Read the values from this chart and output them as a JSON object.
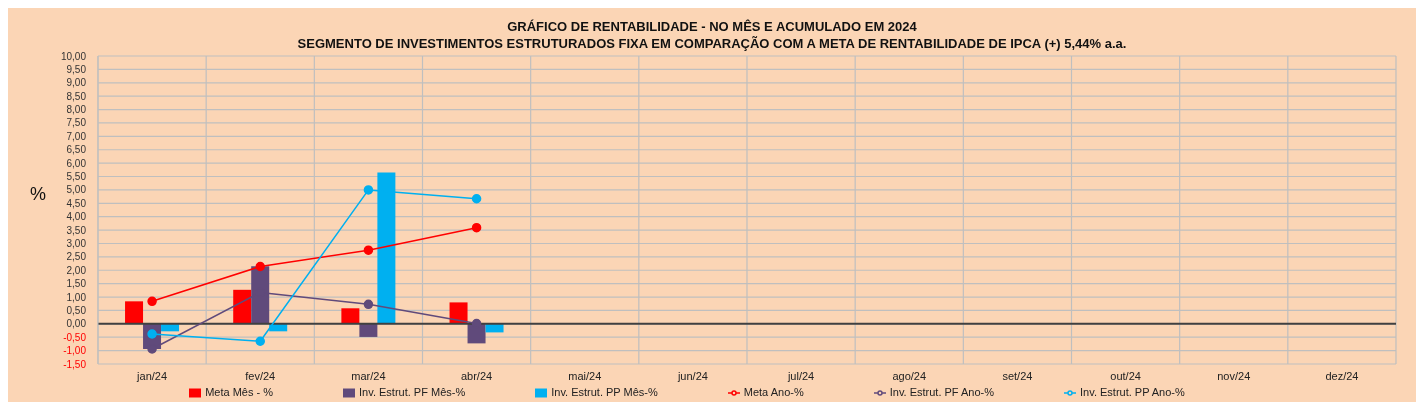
{
  "chart_data": {
    "type": "bar",
    "title": "GRÁFICO DE RENTABILIDADE - NO MÊS E ACUMULADO EM 2024",
    "subtitle": "SEGMENTO DE INVESTIMENTOS ESTRUTURADOS FIXA EM COMPARAÇÃO COM A META DE RENTABILIDADE DE IPCA (+) 5,44% a.a.",
    "ylabel": "%",
    "categories": [
      "jan/24",
      "fev/24",
      "mar/24",
      "abr/24",
      "mai/24",
      "jun/24",
      "jul/24",
      "ago/24",
      "set/24",
      "out/24",
      "nov/24",
      "dez/24"
    ],
    "series": [
      {
        "name": "Meta Mês - %",
        "color": "#ff0000",
        "values": [
          0.84,
          1.27,
          0.58,
          0.8,
          null,
          null,
          null,
          null,
          null,
          null,
          null,
          null
        ]
      },
      {
        "name": "Inv. Estrut. PF Mês-%",
        "color": "#604a7b",
        "values": [
          -0.94,
          2.15,
          -0.49,
          -0.73,
          null,
          null,
          null,
          null,
          null,
          null,
          null,
          null
        ]
      },
      {
        "name": "Inv. Estrut. PP Mês-%",
        "color": "#00b0f0",
        "values": [
          -0.28,
          -0.28,
          5.65,
          -0.32,
          null,
          null,
          null,
          null,
          null,
          null,
          null,
          null
        ]
      },
      {
        "name": "Meta Ano-%",
        "type": "line",
        "color": "#ff0000",
        "values": [
          0.84,
          2.14,
          2.75,
          3.59,
          null,
          null,
          null,
          null,
          null,
          null,
          null,
          null
        ]
      },
      {
        "name": "Inv. Estrut. PF Ano-%",
        "type": "line",
        "color": "#604a7b",
        "values": [
          -0.94,
          1.17,
          0.73,
          0.01,
          null,
          null,
          null,
          null,
          null,
          null,
          null,
          null
        ]
      },
      {
        "name": "Inv. Estrut. PP Ano-%",
        "type": "line",
        "color": "#00b0f0",
        "values": [
          -0.38,
          -0.65,
          5.0,
          4.67,
          null,
          null,
          null,
          null,
          null,
          null,
          null,
          null
        ]
      }
    ],
    "ylim": [
      -1.5,
      10
    ],
    "yticks": [
      {
        "value": -1.5,
        "label": "-1,50"
      },
      {
        "value": -1,
        "label": "-1,00"
      },
      {
        "value": -0.5,
        "label": "-0,50"
      },
      {
        "value": 0,
        "label": "0,00"
      },
      {
        "value": 0.5,
        "label": "0,50"
      },
      {
        "value": 1,
        "label": "1,00"
      },
      {
        "value": 1.5,
        "label": "1,50"
      },
      {
        "value": 2,
        "label": "2,00"
      },
      {
        "value": 2.5,
        "label": "2,50"
      },
      {
        "value": 3,
        "label": "3,00"
      },
      {
        "value": 3.5,
        "label": "3,50"
      },
      {
        "value": 4,
        "label": "4,00"
      },
      {
        "value": 4.5,
        "label": "4,50"
      },
      {
        "value": 5,
        "label": "5,00"
      },
      {
        "value": 5.5,
        "label": "5,50"
      },
      {
        "value": 6,
        "label": "6,00"
      },
      {
        "value": 6.5,
        "label": "6,50"
      },
      {
        "value": 7,
        "label": "7,00"
      },
      {
        "value": 7.5,
        "label": "7,50"
      },
      {
        "value": 8,
        "label": "8,00"
      },
      {
        "value": 8.5,
        "label": "8,50"
      },
      {
        "value": 9,
        "label": "9,00"
      },
      {
        "value": 9.5,
        "label": "9,50"
      },
      {
        "value": 10,
        "label": "10,00"
      }
    ],
    "grid": true,
    "legend": "bottom",
    "marker": "circle",
    "line_style": "solid"
  }
}
